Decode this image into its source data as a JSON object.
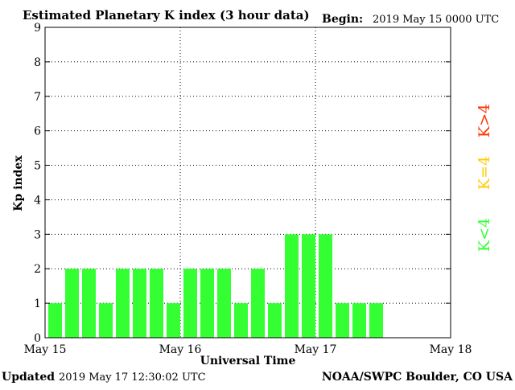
{
  "header": {
    "title": "Estimated Planetary K index (3 hour data)",
    "begin_label": "Begin:",
    "begin_value": "2019 May 15 0000 UTC"
  },
  "footer": {
    "updated_label": "Updated",
    "updated_value": "2019 May 17 12:30:02 UTC",
    "source": "NOAA/SWPC Boulder, CO USA"
  },
  "legend": {
    "items": [
      {
        "label": "K<4",
        "color": "#33ff33"
      },
      {
        "label": "K=4",
        "color": "#ffcc00"
      },
      {
        "label": "K>4",
        "color": "#ff3300"
      }
    ]
  },
  "colors": {
    "bar": "#33ff33",
    "grid": "#000000"
  },
  "chart_data": {
    "type": "bar",
    "title": "Estimated Planetary K index (3 hour data)",
    "xlabel": "Universal Time",
    "ylabel": "Kp index",
    "ylim": [
      0,
      9
    ],
    "yticks": [
      0,
      1,
      2,
      3,
      4,
      5,
      6,
      7,
      8,
      9
    ],
    "xlim_days": [
      0,
      3
    ],
    "xtick_labels": [
      "May 15",
      "May 16",
      "May 17",
      "May 18"
    ],
    "interval_hours": 3,
    "grid": true,
    "values": [
      1,
      2,
      2,
      1,
      2,
      2,
      2,
      1,
      2,
      2,
      2,
      1,
      2,
      1,
      3,
      3,
      3,
      1,
      1,
      1
    ]
  }
}
